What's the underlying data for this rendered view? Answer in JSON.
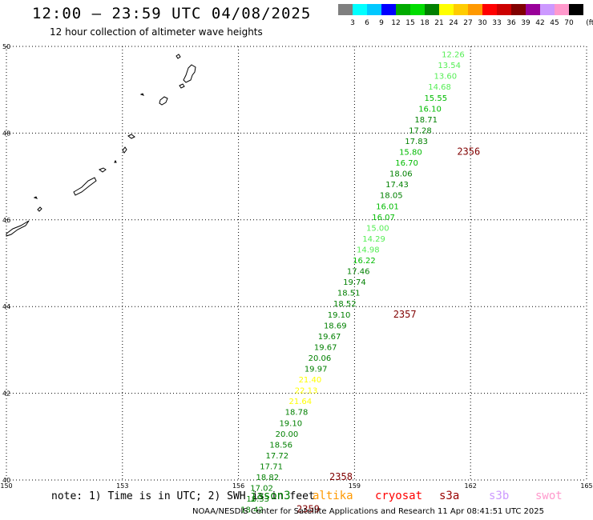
{
  "header": {
    "title": "12:00 – 23:59 UTC 04/08/2025",
    "subtitle": "12 hour collection of altimeter wave heights"
  },
  "colorbar": {
    "unit_label": "(ft)",
    "labels": [
      "3",
      "6",
      "9",
      "12",
      "15",
      "18",
      "21",
      "24",
      "27",
      "30",
      "33",
      "36",
      "39",
      "42",
      "45",
      "70"
    ],
    "colors": [
      "#7f7f7f",
      "#00ffff",
      "#00c8ff",
      "#0000ff",
      "#00aa00",
      "#00dd00",
      "#008000",
      "#ffff00",
      "#ffcc00",
      "#ff9900",
      "#ff0000",
      "#cc0000",
      "#800000",
      "#990099",
      "#cc99ff",
      "#ff99cc",
      "#000000"
    ]
  },
  "footer": {
    "note": "note: 1) Time is in UTC; 2) SWH is in feet",
    "credit": "NOAA/NESDIS Center for Satellite Applications and Research    11 Apr 08:41:51 UTC 2025",
    "satellites": [
      {
        "name": "jason3",
        "color": "#008000"
      },
      {
        "name": "altika",
        "color": "#ff9900"
      },
      {
        "name": "cryosat",
        "color": "#ff0000"
      },
      {
        "name": "s3a",
        "color": "#990000"
      },
      {
        "name": "s3b",
        "color": "#cc99ff"
      },
      {
        "name": "swot",
        "color": "#ff99cc"
      }
    ]
  },
  "chart_data": {
    "type": "scatter",
    "title": "12:00 – 23:59 UTC 04/08/2025",
    "subtitle": "12 hour collection of altimeter wave heights",
    "xlim": [
      150,
      165
    ],
    "ylim": [
      40,
      50
    ],
    "x_ticks": [
      "150",
      "153",
      "156",
      "159",
      "162",
      "165"
    ],
    "y_ticks": [
      "40",
      "42",
      "44",
      "46",
      "48",
      "50"
    ],
    "grid": true,
    "points": [
      {
        "lon": 161.55,
        "lat": 49.75,
        "swh": "12.26",
        "color": "#55ee55"
      },
      {
        "lon": 161.45,
        "lat": 49.5,
        "swh": "13.54",
        "color": "#55ee55"
      },
      {
        "lon": 161.35,
        "lat": 49.25,
        "swh": "13.60",
        "color": "#55ee55"
      },
      {
        "lon": 161.2,
        "lat": 49.0,
        "swh": "14.68",
        "color": "#55ee55"
      },
      {
        "lon": 161.1,
        "lat": 48.75,
        "swh": "15.55",
        "color": "#00bb00"
      },
      {
        "lon": 160.95,
        "lat": 48.5,
        "swh": "16.10",
        "color": "#00bb00"
      },
      {
        "lon": 160.85,
        "lat": 48.25,
        "swh": "18.71",
        "color": "#008000"
      },
      {
        "lon": 160.7,
        "lat": 48.0,
        "swh": "17.28",
        "color": "#008000"
      },
      {
        "lon": 160.6,
        "lat": 47.75,
        "swh": "17.83",
        "color": "#008000"
      },
      {
        "lon": 160.45,
        "lat": 47.5,
        "swh": "15.80",
        "color": "#00bb00"
      },
      {
        "lon": 160.35,
        "lat": 47.25,
        "swh": "16.70",
        "color": "#00bb00"
      },
      {
        "lon": 160.2,
        "lat": 47.0,
        "swh": "18.06",
        "color": "#008000"
      },
      {
        "lon": 160.1,
        "lat": 46.75,
        "swh": "17.43",
        "color": "#008000"
      },
      {
        "lon": 159.95,
        "lat": 46.5,
        "swh": "18.05",
        "color": "#008000"
      },
      {
        "lon": 159.85,
        "lat": 46.25,
        "swh": "16.01",
        "color": "#00bb00"
      },
      {
        "lon": 159.75,
        "lat": 46.0,
        "swh": "16.07",
        "color": "#00bb00"
      },
      {
        "lon": 159.6,
        "lat": 45.75,
        "swh": "15.00",
        "color": "#55ee55"
      },
      {
        "lon": 159.5,
        "lat": 45.5,
        "swh": "14.29",
        "color": "#55ee55"
      },
      {
        "lon": 159.35,
        "lat": 45.25,
        "swh": "14.98",
        "color": "#55ee55"
      },
      {
        "lon": 159.25,
        "lat": 45.0,
        "swh": "16.22",
        "color": "#00bb00"
      },
      {
        "lon": 159.1,
        "lat": 44.75,
        "swh": "17.46",
        "color": "#008000"
      },
      {
        "lon": 159.0,
        "lat": 44.5,
        "swh": "19.74",
        "color": "#008000"
      },
      {
        "lon": 158.85,
        "lat": 44.25,
        "swh": "18.51",
        "color": "#008000"
      },
      {
        "lon": 158.75,
        "lat": 44.0,
        "swh": "18.52",
        "color": "#008000"
      },
      {
        "lon": 158.6,
        "lat": 43.75,
        "swh": "19.10",
        "color": "#008000"
      },
      {
        "lon": 158.5,
        "lat": 43.5,
        "swh": "18.69",
        "color": "#008000"
      },
      {
        "lon": 158.35,
        "lat": 43.25,
        "swh": "19.67",
        "color": "#008000"
      },
      {
        "lon": 158.25,
        "lat": 43.0,
        "swh": "19.67",
        "color": "#008000"
      },
      {
        "lon": 158.1,
        "lat": 42.75,
        "swh": "20.06",
        "color": "#008000"
      },
      {
        "lon": 158.0,
        "lat": 42.5,
        "swh": "19.97",
        "color": "#008000"
      },
      {
        "lon": 157.85,
        "lat": 42.25,
        "swh": "21.40",
        "color": "#ffff00"
      },
      {
        "lon": 157.75,
        "lat": 42.0,
        "swh": "22.13",
        "color": "#ffff00"
      },
      {
        "lon": 157.6,
        "lat": 41.75,
        "swh": "21.64",
        "color": "#ffff00"
      },
      {
        "lon": 157.5,
        "lat": 41.5,
        "swh": "18.78",
        "color": "#008000"
      },
      {
        "lon": 157.35,
        "lat": 41.25,
        "swh": "19.10",
        "color": "#008000"
      },
      {
        "lon": 157.25,
        "lat": 41.0,
        "swh": "20.00",
        "color": "#008000"
      },
      {
        "lon": 157.1,
        "lat": 40.75,
        "swh": "18.56",
        "color": "#008000"
      },
      {
        "lon": 157.0,
        "lat": 40.5,
        "swh": "17.72",
        "color": "#008000"
      },
      {
        "lon": 156.85,
        "lat": 40.25,
        "swh": "17.71",
        "color": "#008000"
      },
      {
        "lon": 156.75,
        "lat": 40.0,
        "swh": "18.82",
        "color": "#008000"
      },
      {
        "lon": 156.6,
        "lat": 39.75,
        "swh": "17.02",
        "color": "#008000"
      },
      {
        "lon": 156.5,
        "lat": 39.5,
        "swh": "18.33",
        "color": "#008000"
      },
      {
        "lon": 156.35,
        "lat": 39.25,
        "swh": "18.42",
        "color": "#008000"
      }
    ],
    "times": [
      {
        "lon": 161.95,
        "lat": 47.5,
        "label": "2356",
        "color": "#800000"
      },
      {
        "lon": 160.3,
        "lat": 43.75,
        "label": "2357",
        "color": "#800000"
      },
      {
        "lon": 158.65,
        "lat": 40.0,
        "label": "2358",
        "color": "#800000"
      },
      {
        "lon": 157.8,
        "lat": 39.25,
        "label": "2359",
        "color": "#800000"
      }
    ]
  }
}
